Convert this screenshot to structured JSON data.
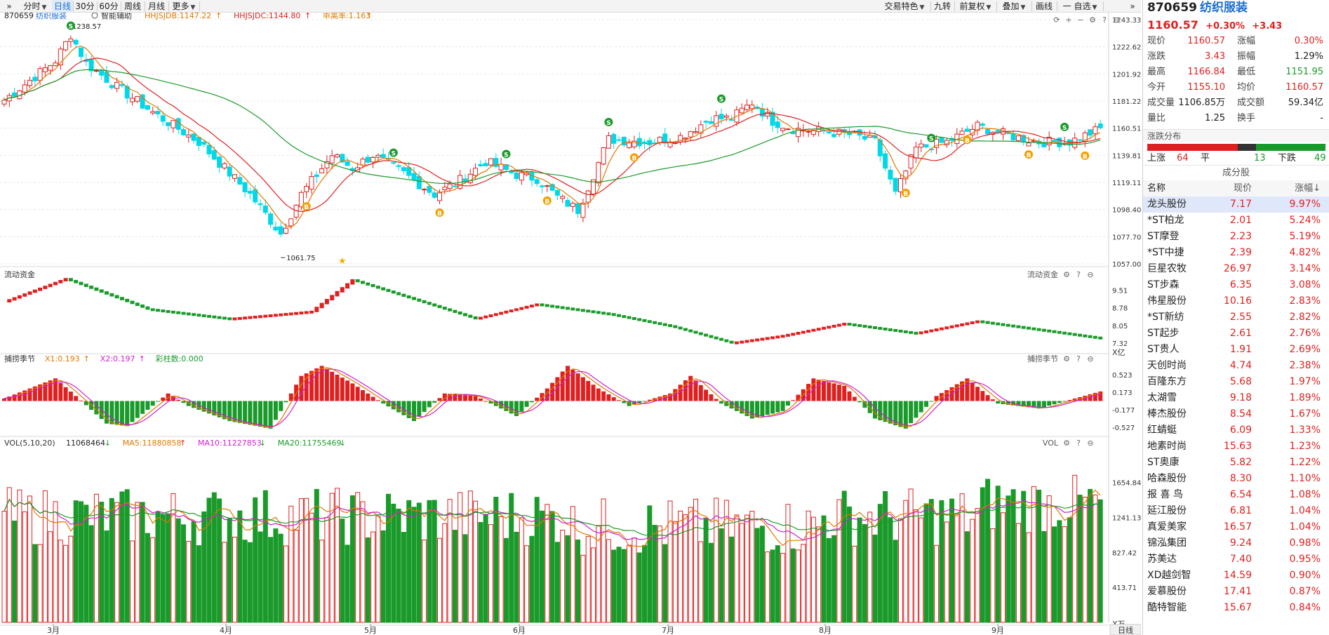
{
  "toolbar": {
    "items": [
      {
        "label": "分时",
        "dropdown": true,
        "selected": false
      },
      {
        "label": "日线",
        "dropdown": false,
        "selected": true
      },
      {
        "label": "30分",
        "dropdown": false,
        "selected": false
      },
      {
        "label": "60分",
        "dropdown": false,
        "selected": false
      },
      {
        "label": "周线",
        "dropdown": false,
        "selected": false
      },
      {
        "label": "月线",
        "dropdown": false,
        "selected": false
      },
      {
        "label": "更多",
        "dropdown": true,
        "selected": false
      }
    ],
    "right_items": [
      {
        "label": "交易特色",
        "dropdown": true
      },
      {
        "label": "九转",
        "dropdown": false
      },
      {
        "label": "前复权",
        "dropdown": true
      },
      {
        "label": "叠加",
        "dropdown": true
      },
      {
        "label": "画线",
        "dropdown": false
      },
      {
        "label": "一 自选",
        "dropdown": true
      }
    ],
    "expand_glyph": "»"
  },
  "main_legend": {
    "code": "870659",
    "name": "纺织服装",
    "assist": "智能辅助",
    "items": [
      {
        "label": "HHJSJDB:1147.22",
        "color": "#e07800",
        "arrow": "up"
      },
      {
        "label": "HHJSJDC:1144.80",
        "color": "#e02020",
        "arrow": "up"
      },
      {
        "label": "乖离率:1.163",
        "color": "#e07800",
        "arrow": "up"
      }
    ],
    "high_label": "1238.57",
    "low_label": "1061.75",
    "y_ticks": [
      "1243.33",
      "1222.62",
      "1201.92",
      "1181.22",
      "1160.51",
      "1139.81",
      "1119.11",
      "1098.40",
      "1077.70",
      "1057.00"
    ]
  },
  "flow_panel": {
    "title": "流动资金",
    "right_title": "流动资金",
    "y_ticks": [
      "9.51",
      "8.78",
      "8.05",
      "7.32"
    ],
    "unit": "X亿"
  },
  "season_panel": {
    "title": "捕捞季节",
    "right_title": "捕捞季节",
    "items": [
      {
        "label": "X1:0.193",
        "color": "#e07800",
        "arrow": "up"
      },
      {
        "label": "X2:0.197",
        "color": "#d020d0",
        "arrow": "up"
      },
      {
        "label": "彩柱数:0.000",
        "color": "#1a9a2a",
        "arrow": ""
      }
    ],
    "y_ticks": [
      "0.523",
      "0.173",
      "-0.177",
      "-0.527"
    ]
  },
  "vol_panel": {
    "title": "VOL(5,10,20)",
    "right_title": "VOL",
    "items": [
      {
        "label": "11068464",
        "color": "#222222",
        "arrow": "down"
      },
      {
        "label": "MA5:11880858",
        "color": "#e07800",
        "arrow": "up"
      },
      {
        "label": "MA10:11227853",
        "color": "#d020d0",
        "arrow": "down"
      },
      {
        "label": "MA20:11755469",
        "color": "#1a9a2a",
        "arrow": "down"
      }
    ],
    "y_ticks": [
      "1654.84",
      "1241.13",
      "827.42",
      "413.71"
    ],
    "unit": "X万"
  },
  "date_axis": {
    "months": [
      "3月",
      "4月",
      "5月",
      "6月",
      "7月",
      "8月",
      "9月"
    ],
    "period": "日线"
  },
  "quote": {
    "code": "870659",
    "name": "纺织服装",
    "price": "1160.57",
    "change_pct": "+0.30%",
    "change": "+3.43",
    "rows": [
      {
        "l1": "现价",
        "v1": "1160.57",
        "c1": "red",
        "l2": "涨幅",
        "v2": "0.30%",
        "c2": "red"
      },
      {
        "l1": "涨跌",
        "v1": "3.43",
        "c1": "red",
        "l2": "振幅",
        "v2": "1.29%",
        "c2": "black"
      },
      {
        "l1": "最高",
        "v1": "1166.84",
        "c1": "red",
        "l2": "最低",
        "v2": "1151.95",
        "c2": "green"
      },
      {
        "l1": "今开",
        "v1": "1155.10",
        "c1": "red",
        "l2": "均价",
        "v2": "1160.57",
        "c2": "red"
      },
      {
        "l1": "成交量",
        "v1": "1106.85万",
        "c1": "black",
        "l2": "成交额",
        "v2": "59.34亿",
        "c2": "black"
      },
      {
        "l1": "量比",
        "v1": "1.25",
        "c1": "black",
        "l2": "换手",
        "v2": "-",
        "c2": "black"
      }
    ],
    "breadth_title": "涨跌分布",
    "up_label": "上涨",
    "up_count": "64",
    "flat_label": "平",
    "flat_count": "13",
    "down_label": "下跌",
    "down_count": "49",
    "constituents_title": "成分股",
    "columns": [
      "名称",
      "现价",
      "涨幅↓"
    ],
    "stocks": [
      {
        "name": "龙头股份",
        "price": "7.17",
        "chg": "9.97%"
      },
      {
        "name": "*ST柏龙",
        "price": "2.01",
        "chg": "5.24%"
      },
      {
        "name": "ST摩登",
        "price": "2.23",
        "chg": "5.19%"
      },
      {
        "name": "*ST中捷",
        "price": "2.39",
        "chg": "4.82%"
      },
      {
        "name": "巨星农牧",
        "price": "26.97",
        "chg": "3.14%"
      },
      {
        "name": "ST步森",
        "price": "6.35",
        "chg": "3.08%"
      },
      {
        "name": "伟星股份",
        "price": "10.16",
        "chg": "2.83%"
      },
      {
        "name": "*ST新纺",
        "price": "2.55",
        "chg": "2.82%"
      },
      {
        "name": "ST起步",
        "price": "2.61",
        "chg": "2.76%"
      },
      {
        "name": "ST贵人",
        "price": "1.91",
        "chg": "2.69%"
      },
      {
        "name": "天创时尚",
        "price": "4.74",
        "chg": "2.38%"
      },
      {
        "name": "百隆东方",
        "price": "5.68",
        "chg": "1.97%"
      },
      {
        "name": "太湖雪",
        "price": "9.18",
        "chg": "1.89%"
      },
      {
        "name": "棒杰股份",
        "price": "8.54",
        "chg": "1.67%"
      },
      {
        "name": "红蜻蜓",
        "price": "6.09",
        "chg": "1.33%"
      },
      {
        "name": "地素时尚",
        "price": "15.63",
        "chg": "1.23%"
      },
      {
        "name": "ST奥康",
        "price": "5.82",
        "chg": "1.22%"
      },
      {
        "name": "哈森股份",
        "price": "8.30",
        "chg": "1.10%"
      },
      {
        "name": "报 喜 鸟",
        "price": "6.54",
        "chg": "1.08%"
      },
      {
        "name": "延江股份",
        "price": "6.81",
        "chg": "1.04%"
      },
      {
        "name": "真爱美家",
        "price": "16.57",
        "chg": "1.04%"
      },
      {
        "name": "锦泓集团",
        "price": "9.24",
        "chg": "0.98%"
      },
      {
        "name": "苏美达",
        "price": "7.40",
        "chg": "0.95%"
      },
      {
        "name": "XD越剑智",
        "price": "14.59",
        "chg": "0.90%"
      },
      {
        "name": "爱慕股份",
        "price": "17.41",
        "chg": "0.87%"
      },
      {
        "name": "酷特智能",
        "price": "15.67",
        "chg": "0.84%"
      }
    ]
  },
  "colors": {
    "up": "#e02020",
    "down_candle": "#00d8e8",
    "down_vol": "#1a9a2a",
    "ma_short": "#e07800",
    "ma_mid": "#e02020",
    "ma_long": "#1a9a2a",
    "accent": "#1e6fd0"
  }
}
